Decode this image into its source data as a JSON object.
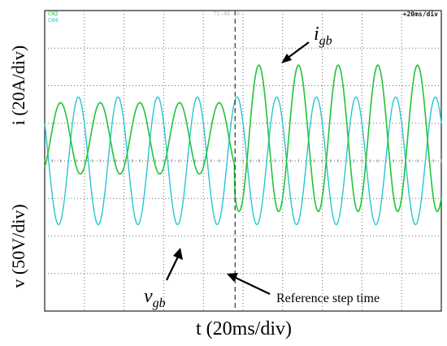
{
  "chart_data": {
    "type": "line",
    "xlabel": "t (20ms/div)",
    "ylabel_top": "i (20A/div)",
    "ylabel_bottom": "v (50V/div)",
    "scope": {
      "channel_labels": [
        "CH2",
        "CH4"
      ],
      "timebase": "+20ms/div",
      "trigger_readout": "T1:40.0k",
      "grid": true,
      "divisions_x": 10,
      "divisions_y": 8
    },
    "xlim": [
      0,
      10
    ],
    "ylim": [
      -4,
      4
    ],
    "step_time_div": 4.8,
    "series": [
      {
        "name": "i_gb",
        "color": "#22c33a",
        "periods_per_div": 1.0,
        "amplitude_before_div": 0.95,
        "amplitude_after_div": 1.95,
        "offset_div": 0.6,
        "first_peak_div": 0.4,
        "points_per_div": 50,
        "stroke_width": 1.6
      },
      {
        "name": "v_gb",
        "color": "#29c5d3",
        "periods_per_div": 1.0,
        "amplitude_before_div": 1.7,
        "amplitude_after_div": 1.7,
        "offset_div": 0.0,
        "first_peak_div": 0.85,
        "points_per_div": 50,
        "stroke_width": 1.4
      }
    ],
    "annotations": [
      {
        "label_main": "i",
        "label_sub": "gb",
        "points_to": "i_gb"
      },
      {
        "label_main": "v",
        "label_sub": "gb",
        "points_to": "v_gb"
      },
      {
        "label": "Reference step time",
        "points_to": "step_marker"
      }
    ]
  }
}
